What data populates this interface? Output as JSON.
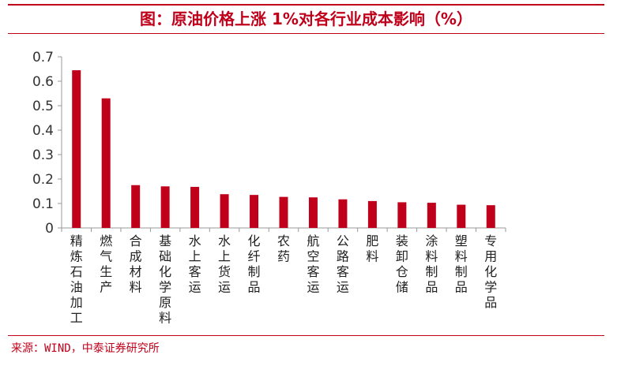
{
  "title": "图：原油价格上涨 1%对各行业成本影响（%）",
  "source": "来源：WIND，中泰证券研究所",
  "colors": {
    "accent": "#c0001a",
    "bar": "#c0001a",
    "axis": "#999999"
  },
  "chart_data": {
    "type": "bar",
    "title": "图：原油价格上涨 1%对各行业成本影响（%）",
    "xlabel": "",
    "ylabel": "",
    "ylim": [
      0,
      0.7
    ],
    "yticks": [
      "0",
      "0.1",
      "0.2",
      "0.3",
      "0.4",
      "0.5",
      "0.6",
      "0.7"
    ],
    "grid": false,
    "categories": [
      "精炼石油加工",
      "燃气生产",
      "合成材料",
      "基础化学原料",
      "水上客运",
      "水上货运",
      "化纤制品",
      "农药",
      "航空客运",
      "公路客运",
      "肥料",
      "装卸仓储",
      "涂料制品",
      "塑料制品",
      "专用化学品"
    ],
    "values": [
      0.645,
      0.53,
      0.175,
      0.17,
      0.168,
      0.138,
      0.135,
      0.127,
      0.125,
      0.117,
      0.11,
      0.105,
      0.103,
      0.095,
      0.093
    ]
  }
}
